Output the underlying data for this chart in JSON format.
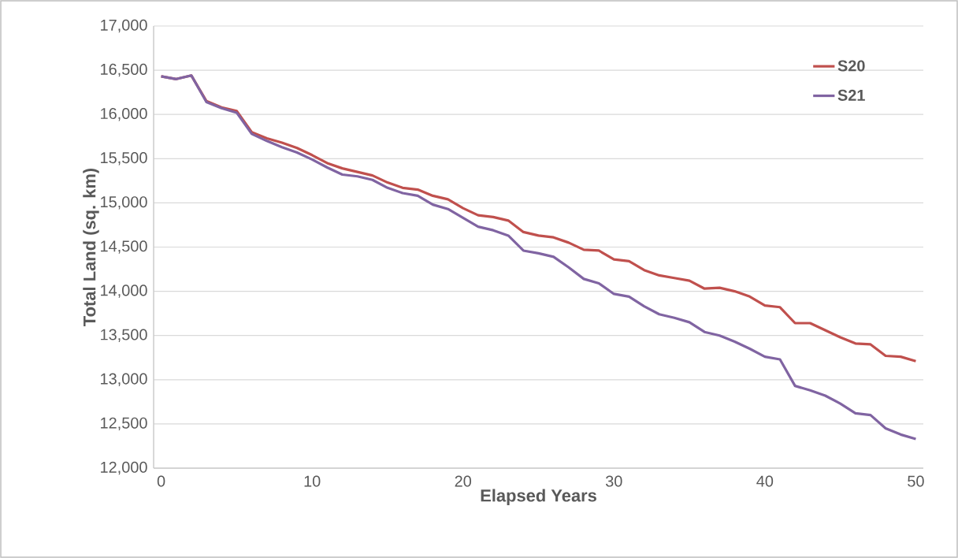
{
  "chart_data": {
    "type": "line",
    "xlabel": "Elapsed Years",
    "ylabel": "Total Land (sq. km)",
    "x": [
      0,
      1,
      2,
      3,
      4,
      5,
      6,
      7,
      8,
      9,
      10,
      11,
      12,
      13,
      14,
      15,
      16,
      17,
      18,
      19,
      20,
      21,
      22,
      23,
      24,
      25,
      26,
      27,
      28,
      29,
      30,
      31,
      32,
      33,
      34,
      35,
      36,
      37,
      38,
      39,
      40,
      41,
      42,
      43,
      44,
      45,
      46,
      47,
      48,
      49,
      50
    ],
    "series": [
      {
        "name": "S20",
        "color": "#c0504d",
        "values": [
          16430,
          16400,
          16440,
          16150,
          16080,
          16040,
          15800,
          15730,
          15680,
          15620,
          15540,
          15450,
          15390,
          15350,
          15310,
          15230,
          15170,
          15150,
          15080,
          15040,
          14940,
          14860,
          14840,
          14800,
          14670,
          14630,
          14610,
          14550,
          14470,
          14460,
          14360,
          14340,
          14240,
          14180,
          14150,
          14120,
          14030,
          14040,
          14000,
          13940,
          13840,
          13820,
          13640,
          13640,
          13560,
          13480,
          13410,
          13400,
          13270,
          13260,
          13210
        ]
      },
      {
        "name": "S21",
        "color": "#8064a2",
        "values": [
          16430,
          16400,
          16440,
          16140,
          16070,
          16020,
          15780,
          15700,
          15630,
          15570,
          15490,
          15400,
          15320,
          15300,
          15260,
          15170,
          15110,
          15080,
          14980,
          14930,
          14830,
          14730,
          14690,
          14630,
          14460,
          14430,
          14390,
          14270,
          14140,
          14090,
          13970,
          13940,
          13830,
          13740,
          13700,
          13650,
          13540,
          13500,
          13430,
          13350,
          13260,
          13230,
          12930,
          12880,
          12820,
          12730,
          12620,
          12600,
          12450,
          12380,
          12330
        ]
      }
    ],
    "xlim": [
      -0.5,
      50.5
    ],
    "xticks": [
      0,
      10,
      20,
      30,
      40,
      50
    ],
    "ylim": [
      12000,
      17000
    ],
    "yticks": [
      {
        "value": 12000,
        "label": "12,000"
      },
      {
        "value": 12500,
        "label": "12,500"
      },
      {
        "value": 13000,
        "label": "13,000"
      },
      {
        "value": 13500,
        "label": "13,500"
      },
      {
        "value": 14000,
        "label": "14,000"
      },
      {
        "value": 14500,
        "label": "14,500"
      },
      {
        "value": 15000,
        "label": "15,000"
      },
      {
        "value": 15500,
        "label": "15,500"
      },
      {
        "value": 16000,
        "label": "16,000"
      },
      {
        "value": 16500,
        "label": "16,500"
      },
      {
        "value": 17000,
        "label": "17,000"
      }
    ],
    "grid": "y",
    "legend": "top right",
    "marker": "none",
    "line_style": "solid"
  }
}
